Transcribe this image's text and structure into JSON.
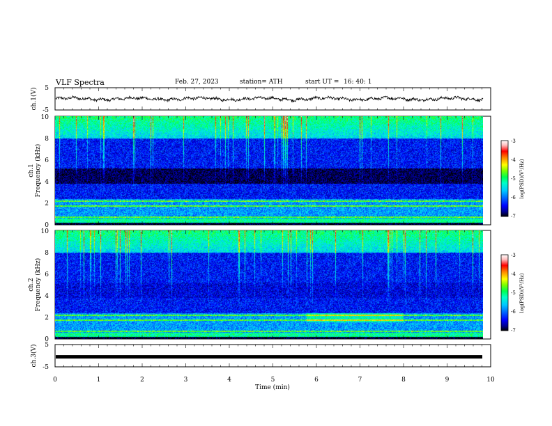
{
  "header": {
    "title": "VLF Spectra",
    "date": "Feb. 27, 2023",
    "station": "station= ATH",
    "start_label": "start UT =",
    "start_time": "16: 40: 1"
  },
  "chart_data": [
    {
      "type": "line",
      "name": "ch1-waveform",
      "ylabel": "ch.1(V)",
      "ylim": [
        -5,
        5
      ],
      "y_tick_labels": [
        "5",
        "-5"
      ],
      "xlim": [
        0,
        10
      ],
      "approx_level": 0.0,
      "approx_amplitude": 1.2
    },
    {
      "type": "heatmap",
      "name": "ch1-spectrogram",
      "ylabel": "ch.1 Frequency (kHz)",
      "ylabel_top": "ch.1",
      "ylabel_main": "Frequency (kHz)",
      "ylim": [
        0,
        10
      ],
      "y_tick_labels": [
        "0",
        "2",
        "4",
        "6",
        "8",
        "10"
      ],
      "xlim": [
        0,
        9.83
      ],
      "colorbar": {
        "label": "log(PSD)(V²/Hz)",
        "range": [
          -7,
          -3
        ],
        "tick_labels": [
          "-3",
          "-4",
          "-5",
          "-6",
          "-7"
        ]
      }
    },
    {
      "type": "heatmap",
      "name": "ch2-spectrogram",
      "ylabel": "ch.2 Frequency (kHz)",
      "ylabel_top": "ch.2",
      "ylabel_main": "Frequency (kHz)",
      "ylim": [
        0,
        10
      ],
      "y_tick_labels": [
        "0",
        "2",
        "4",
        "6",
        "8",
        "10"
      ],
      "xlim": [
        0,
        9.83
      ],
      "colorbar": {
        "label": "log(PSD)(V²/Hz)",
        "range": [
          -7,
          -3
        ],
        "tick_labels": [
          "-3",
          "-4",
          "-5",
          "-6",
          "-7"
        ]
      }
    },
    {
      "type": "line",
      "name": "ch3-waveform",
      "ylabel": "ch.3(V)",
      "ylim": [
        -5,
        5
      ],
      "y_tick_labels": [
        "5",
        "-5"
      ],
      "xlim": [
        0,
        10
      ],
      "approx_level": -0.5
    }
  ],
  "x_axis": {
    "label": "Time (min)",
    "tick_labels": [
      "0",
      "1",
      "2",
      "3",
      "4",
      "5",
      "6",
      "7",
      "8",
      "9",
      "10"
    ],
    "range": [
      0,
      10
    ]
  },
  "colors": {
    "colormap": [
      "#000000",
      "#00008c",
      "#0000ff",
      "#0064ff",
      "#00c8ff",
      "#00ffc8",
      "#00ff50",
      "#78ff00",
      "#ffff00",
      "#ff8c00",
      "#ff0000",
      "#ffc0c0",
      "#ffffff"
    ]
  }
}
